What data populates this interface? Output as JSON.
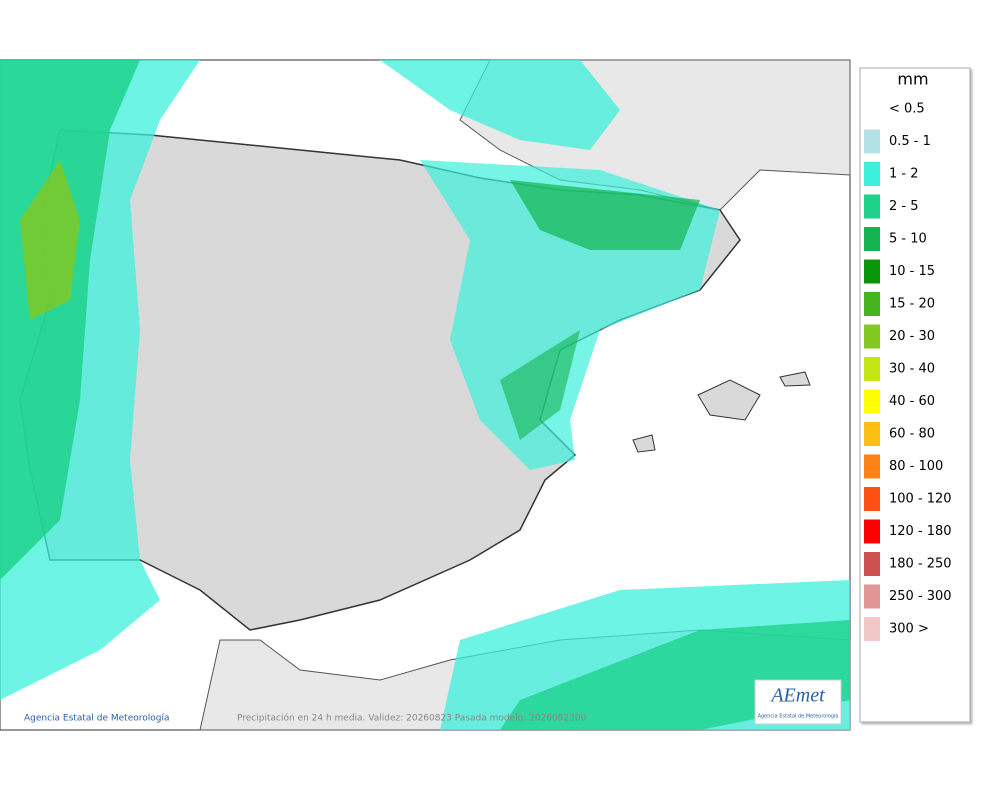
{
  "legend": {
    "title": "mm",
    "items": [
      {
        "label": "< 0.5",
        "color": "#ffffff"
      },
      {
        "label": "0.5 - 1",
        "color": "#b4e1e6"
      },
      {
        "label": "1 - 2",
        "color": "#3cf0dc"
      },
      {
        "label": "2 - 5",
        "color": "#1ed28c"
      },
      {
        "label": "5 - 10",
        "color": "#14b450"
      },
      {
        "label": "10 - 15",
        "color": "#0a960a"
      },
      {
        "label": "15 - 20",
        "color": "#46b41e"
      },
      {
        "label": "20 - 30",
        "color": "#82c81e"
      },
      {
        "label": "30 - 40",
        "color": "#c3e614"
      },
      {
        "label": "40 - 60",
        "color": "#ffff00"
      },
      {
        "label": "60 - 80",
        "color": "#ffbe14"
      },
      {
        "label": "80 - 100",
        "color": "#ff8214"
      },
      {
        "label": "100 - 120",
        "color": "#ff5014"
      },
      {
        "label": "120 - 180",
        "color": "#ff0000"
      },
      {
        "label": "180 - 250",
        "color": "#cd5050"
      },
      {
        "label": "250 - 300",
        "color": "#e19696"
      },
      {
        "label": "300 >",
        "color": "#f0c8c8"
      }
    ]
  },
  "footer": {
    "credit": "Agencia Estatal de Meteorología",
    "caption": "Precipitación en 24 h media. Validez: 20260823 Pasada modelo: 2026082300"
  },
  "logo": {
    "name": "AEmet",
    "subtitle": "Agencia Estatal de Meteorología"
  }
}
